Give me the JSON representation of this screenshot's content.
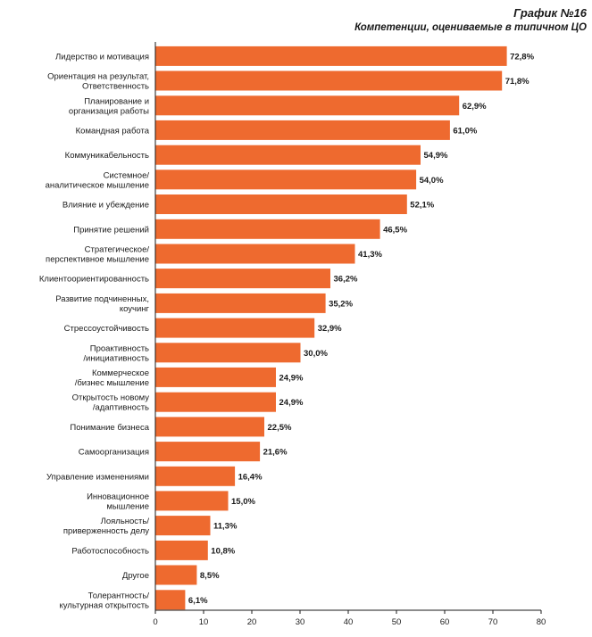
{
  "header": {
    "title": "График №16",
    "subtitle": "Компетенции, оцениваемые в типичном ЦО"
  },
  "colors": {
    "bar": "#ee6a2f",
    "axis": "#1a1a1a"
  },
  "chart_data": {
    "type": "bar",
    "orientation": "horizontal",
    "title": "График №16",
    "subtitle": "Компетенции, оцениваемые в типичном ЦО",
    "value_suffix": "%",
    "categories": [
      "Лидерство и мотивация",
      "Ориентация на результат,\nОтветственность",
      "Планирование и\nорганизация работы",
      "Командная работа",
      "Коммуникабельность",
      "Системное/\nаналитическое мышление",
      "Влияние и убеждение",
      "Принятие решений",
      "Стратегическое/\nперспективное мышление",
      "Клиентоориентированность",
      "Развитие подчиненных,\nкоучинг",
      "Стрессоустойчивость",
      "Проактивность\n/инициативность",
      "Коммерческое\n/бизнес мышление",
      "Открытость новому\n/адаптивность",
      "Понимание бизнеса",
      "Самоорганизация",
      "Управление изменениями",
      "Инновационное\nмышление",
      "Лояльность/\nприверженность делу",
      "Работоспособность",
      "Другое",
      "Толерантность/\nкультурная открытость"
    ],
    "values": [
      72.8,
      71.8,
      62.9,
      61.0,
      54.9,
      54.0,
      52.1,
      46.5,
      41.3,
      36.2,
      35.2,
      32.9,
      30.0,
      24.9,
      24.9,
      22.5,
      21.6,
      16.4,
      15.0,
      11.3,
      10.8,
      8.5,
      6.1
    ],
    "value_labels": [
      "72,8%",
      "71,8%",
      "62,9%",
      "61,0%",
      "54,9%",
      "54,0%",
      "52,1%",
      "46,5%",
      "41,3%",
      "36,2%",
      "35,2%",
      "32,9%",
      "30,0%",
      "24,9%",
      "24,9%",
      "22,5%",
      "21,6%",
      "16,4%",
      "15,0%",
      "11,3%",
      "10,8%",
      "8,5%",
      "6,1%"
    ],
    "xlim": [
      0,
      80
    ],
    "xticks": [
      0,
      10,
      20,
      30,
      40,
      50,
      60,
      70,
      80
    ],
    "grid": false,
    "legend": "none"
  }
}
